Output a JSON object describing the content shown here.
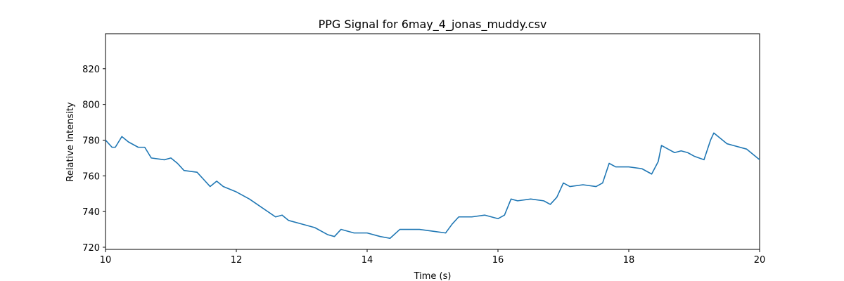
{
  "chart_data": {
    "type": "line",
    "title": "PPG Signal for 6may_4_jonas_muddy.csv",
    "x_label": "Time (s)",
    "y_label": "Relative Intensity",
    "x": [
      10.0,
      10.1,
      10.15,
      10.25,
      10.35,
      10.5,
      10.6,
      10.7,
      10.9,
      11.0,
      11.1,
      11.2,
      11.4,
      11.5,
      11.6,
      11.7,
      11.8,
      12.0,
      12.2,
      12.4,
      12.6,
      12.7,
      12.8,
      13.0,
      13.2,
      13.4,
      13.5,
      13.6,
      13.8,
      14.0,
      14.2,
      14.35,
      14.5,
      14.8,
      15.0,
      15.2,
      15.3,
      15.4,
      15.6,
      15.8,
      16.0,
      16.1,
      16.2,
      16.3,
      16.5,
      16.7,
      16.8,
      16.9,
      17.0,
      17.1,
      17.3,
      17.5,
      17.6,
      17.7,
      17.8,
      18.0,
      18.2,
      18.35,
      18.45,
      18.5,
      18.6,
      18.7,
      18.8,
      18.9,
      19.0,
      19.15,
      19.25,
      19.3,
      19.4,
      19.5,
      19.6,
      19.8,
      19.9,
      20.0
    ],
    "values": [
      780,
      776,
      776,
      782,
      779,
      776,
      776,
      770,
      769,
      770,
      767,
      763,
      762,
      758,
      754,
      757,
      754,
      751,
      747,
      742,
      737,
      738,
      735,
      733,
      731,
      727,
      726,
      730,
      728,
      728,
      726,
      725,
      730,
      730,
      729,
      728,
      733,
      737,
      737,
      738,
      736,
      738,
      747,
      746,
      747,
      746,
      744,
      748,
      756,
      754,
      755,
      754,
      756,
      767,
      765,
      765,
      764,
      761,
      768,
      777,
      775,
      773,
      774,
      773,
      771,
      769,
      780,
      784,
      781,
      778,
      777,
      775,
      772,
      769
    ],
    "color": "#1f77b4",
    "xlim": [
      10,
      20
    ],
    "xticks": [
      10,
      12,
      14,
      16,
      18,
      20
    ],
    "ylim": [
      718.8,
      839.6
    ],
    "yticks": [
      720,
      740,
      760,
      780,
      800,
      820
    ],
    "grid": false
  }
}
